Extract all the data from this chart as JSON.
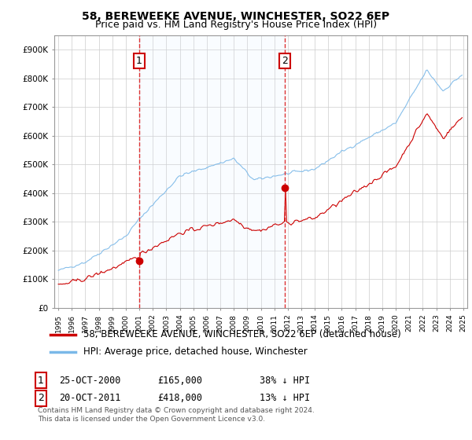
{
  "title": "58, BEREWEEKE AVENUE, WINCHESTER, SO22 6EP",
  "subtitle": "Price paid vs. HM Land Registry's House Price Index (HPI)",
  "legend_line1": "58, BEREWEEKE AVENUE, WINCHESTER, SO22 6EP (detached house)",
  "legend_line2": "HPI: Average price, detached house, Winchester",
  "annotation1_label": "1",
  "annotation1_date": "25-OCT-2000",
  "annotation1_price": "£165,000",
  "annotation1_hpi": "38% ↓ HPI",
  "annotation1_year": 2001.0,
  "annotation1_value": 165000,
  "annotation2_label": "2",
  "annotation2_date": "20-OCT-2011",
  "annotation2_price": "£418,000",
  "annotation2_hpi": "13% ↓ HPI",
  "annotation2_year": 2011.8,
  "annotation2_value": 418000,
  "ylim": [
    0,
    950000
  ],
  "yticks": [
    0,
    100000,
    200000,
    300000,
    400000,
    500000,
    600000,
    700000,
    800000,
    900000
  ],
  "ytick_labels": [
    "£0",
    "£100K",
    "£200K",
    "£300K",
    "£400K",
    "£500K",
    "£600K",
    "£700K",
    "£800K",
    "£900K"
  ],
  "hpi_color": "#7ab8e8",
  "sale_color": "#cc0000",
  "vline_color": "#dd3333",
  "shade_color": "#ddeeff",
  "background_color": "#ffffff",
  "grid_color": "#cccccc",
  "annot_box_color": "#cc0000",
  "footnote": "Contains HM Land Registry data © Crown copyright and database right 2024.\nThis data is licensed under the Open Government Licence v3.0.",
  "title_fontsize": 10,
  "subtitle_fontsize": 9,
  "axis_fontsize": 7.5,
  "legend_fontsize": 8.5,
  "annot_fontsize": 8.5
}
